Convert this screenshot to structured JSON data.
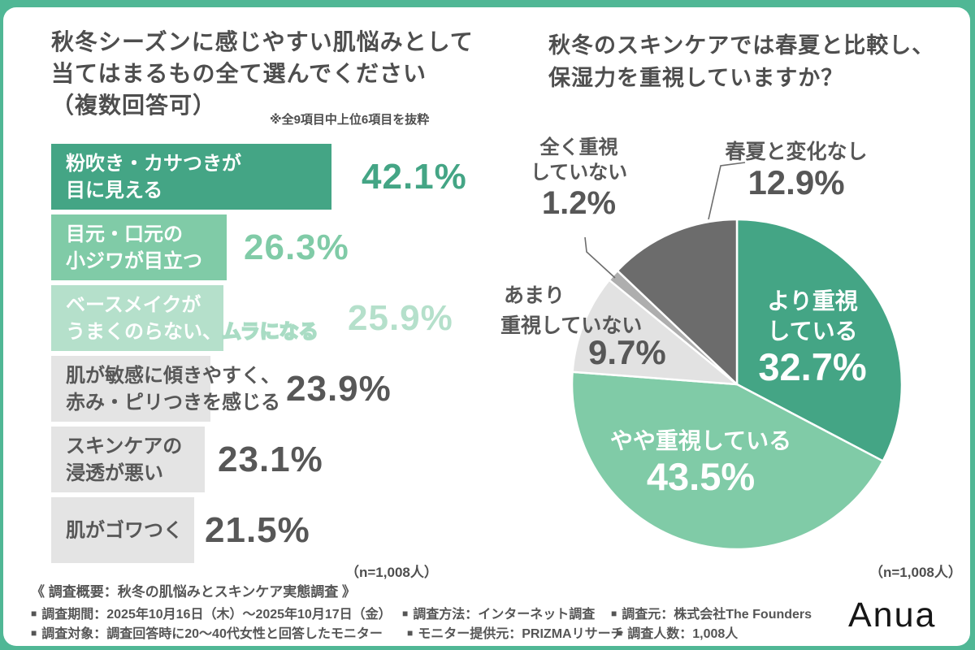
{
  "frame": {
    "border_color": "#50B795",
    "card_color": "#FFFFFF"
  },
  "left_chart": {
    "title_lines": [
      "秋冬シーズンに感じやすい肌悩みとして",
      "当てはまるもの全て選んでください",
      "（複数回答可）"
    ],
    "note": "※全9項目中上位6項目を抜粋",
    "n_label": "（n=1,008人）"
  },
  "right_chart": {
    "title_lines": [
      "秋冬のスキンケアでは春夏と比較し、",
      "保湿力を重視していますか？"
    ],
    "n_label": "（n=1,008人）"
  },
  "chart_data": [
    {
      "type": "bar",
      "orientation": "horizontal",
      "title": "秋冬シーズンに感じやすい肌悩みとして当てはまるもの全て選んでください（複数回答可）",
      "note": "※全9項目中上位6項目を抜粋",
      "n": "n=1,008人",
      "unit": "%",
      "xlim": [
        0,
        45
      ],
      "categories": [
        "粉吹き・カサつきが目に見える",
        "目元・口元の小ジワが目立つ",
        "ベースメイクがうまくのらない、ムラになる",
        "肌が敏感に傾きやすく、赤み・ピリつきを感じる",
        "スキンケアの浸透が悪い",
        "肌がゴワつく"
      ],
      "values": [
        42.1,
        26.3,
        25.9,
        23.9,
        23.1,
        21.5
      ],
      "items": [
        {
          "label_lines": [
            "粉吹き・カサつきが",
            "目に見える"
          ],
          "value": 42.1,
          "value_label": "42.1%",
          "bar_color": "#44A585",
          "label_color": "#FFFFFF",
          "value_color": "#44A585"
        },
        {
          "label_lines": [
            "目元・口元の",
            "小ジワが目立つ"
          ],
          "value": 26.3,
          "value_label": "26.3%",
          "bar_color": "#80CBA7",
          "label_color": "#FFFFFF",
          "value_color": "#80CBA7"
        },
        {
          "label_lines": [
            "ベースメイクが",
            "うまくのらない、"
          ],
          "overflow_text": "ムラになる",
          "value": 25.9,
          "value_label": "25.9%",
          "bar_color": "#B5E0CB",
          "label_color": "#FFFFFF",
          "value_color": "#B5E0CB"
        },
        {
          "label_lines": [
            "肌が敏感に傾きやすく、",
            "赤み・ピリつきを感じる"
          ],
          "value": 23.9,
          "value_label": "23.9%",
          "bar_color": "#E4E4E4",
          "label_color": "#575757",
          "value_color": "#575757"
        },
        {
          "label_lines": [
            "スキンケアの",
            "浸透が悪い"
          ],
          "value": 23.1,
          "value_label": "23.1%",
          "bar_color": "#E4E4E4",
          "label_color": "#575757",
          "value_color": "#575757"
        },
        {
          "label_lines": [
            "肌がゴワつく"
          ],
          "value": 21.5,
          "value_label": "21.5%",
          "bar_color": "#E4E4E4",
          "label_color": "#575757",
          "value_color": "#575757"
        }
      ]
    },
    {
      "type": "pie",
      "title": "秋冬のスキンケアでは春夏と比較し、保湿力を重視していますか？",
      "n": "n=1,008人",
      "start_angle_deg": 0,
      "direction": "clockwise",
      "slices": [
        {
          "label": "より重視している",
          "label_lines": [
            "より重視",
            "している"
          ],
          "value": 32.7,
          "value_label": "32.7%",
          "color": "#44A585",
          "label_position": "inside"
        },
        {
          "label": "やや重視している",
          "label_lines": [
            "やや重視している"
          ],
          "value": 43.5,
          "value_label": "43.5%",
          "color": "#80CBA7",
          "label_position": "inside"
        },
        {
          "label": "あまり重視していない",
          "label_lines": [
            "あまり",
            "重視していない"
          ],
          "value": 9.7,
          "value_label": "9.7%",
          "color": "#E2E2E2",
          "label_position": "outside"
        },
        {
          "label": "全く重視していない",
          "label_lines": [
            "全く重視",
            "していない"
          ],
          "value": 1.2,
          "value_label": "1.2%",
          "color": "#AEAEAE",
          "label_position": "outside"
        },
        {
          "label": "春夏と変化なし",
          "label_lines": [
            "春夏と変化なし"
          ],
          "value": 12.9,
          "value_label": "12.9%",
          "color": "#6C6C6C",
          "label_position": "outside"
        }
      ]
    }
  ],
  "footer": {
    "bullet": "■",
    "overview_title": "《 調査概要：秋冬の肌悩みとスキンケア実態調査 》",
    "items": [
      {
        "text": "調査期間：2025年10月16日（木）～2025年10月17日（金）"
      },
      {
        "text": "調査対象：調査回答時に20～40代女性と回答したモニター"
      },
      {
        "text": "調査方法：インターネット調査"
      },
      {
        "text": "モニター提供元：PRIZMAリサーチ"
      },
      {
        "text": "調査元：株式会社The Founders"
      },
      {
        "text": "調査人数：1,008人"
      }
    ]
  },
  "logo_text": "Anua"
}
